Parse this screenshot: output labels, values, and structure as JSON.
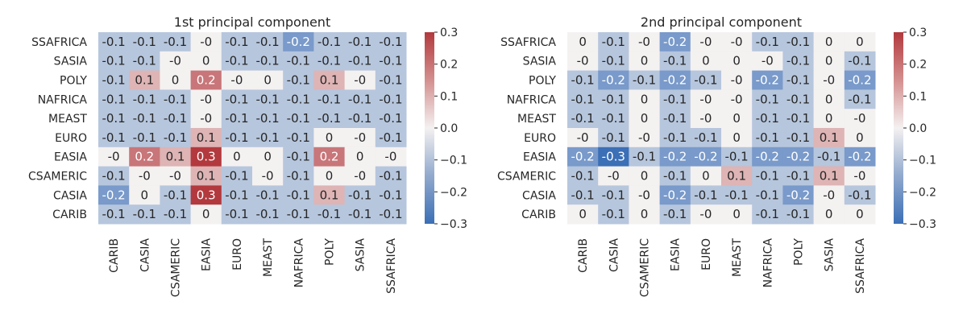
{
  "chart_data": [
    {
      "type": "heatmap",
      "title": "1st principal component",
      "x_categories": [
        "CARIB",
        "CASIA",
        "CSAMERIC",
        "EASIA",
        "EURO",
        "MEAST",
        "NAFRICA",
        "POLY",
        "SASIA",
        "SSAFRICA"
      ],
      "y_categories": [
        "SSAFRICA",
        "SASIA",
        "POLY",
        "NAFRICA",
        "MEAST",
        "EURO",
        "EASIA",
        "CSAMERIC",
        "CASIA",
        "CARIB"
      ],
      "values": [
        [
          -0.1,
          -0.1,
          -0.1,
          -0.0,
          -0.1,
          -0.1,
          -0.2,
          -0.1,
          -0.1,
          -0.1
        ],
        [
          -0.1,
          -0.1,
          -0.0,
          0.0,
          -0.1,
          -0.1,
          -0.1,
          -0.1,
          -0.1,
          -0.1
        ],
        [
          -0.1,
          0.1,
          0.0,
          0.2,
          -0.0,
          0.0,
          -0.1,
          0.1,
          -0.0,
          -0.1
        ],
        [
          -0.1,
          -0.1,
          -0.1,
          -0.0,
          -0.1,
          -0.1,
          -0.1,
          -0.1,
          -0.1,
          -0.1
        ],
        [
          -0.1,
          -0.1,
          -0.1,
          -0.0,
          -0.1,
          -0.1,
          -0.1,
          -0.1,
          -0.1,
          -0.1
        ],
        [
          -0.1,
          -0.1,
          -0.1,
          0.1,
          -0.1,
          -0.1,
          -0.1,
          0.0,
          -0.0,
          -0.1
        ],
        [
          -0.0,
          0.2,
          0.1,
          0.3,
          0.0,
          0.0,
          -0.1,
          0.2,
          0.0,
          -0.0
        ],
        [
          -0.1,
          -0.0,
          -0.0,
          0.1,
          -0.1,
          -0.0,
          -0.1,
          0.0,
          -0.0,
          -0.1
        ],
        [
          -0.2,
          0.0,
          -0.1,
          0.3,
          -0.1,
          -0.1,
          -0.1,
          0.1,
          -0.1,
          -0.1
        ],
        [
          -0.1,
          -0.1,
          -0.1,
          0.0,
          -0.1,
          -0.1,
          -0.1,
          -0.1,
          -0.1,
          -0.1
        ]
      ],
      "labels": [
        [
          "-0.1",
          "-0.1",
          "-0.1",
          "-0",
          "-0.1",
          "-0.1",
          "-0.2",
          "-0.1",
          "-0.1",
          "-0.1"
        ],
        [
          "-0.1",
          "-0.1",
          "-0",
          "0",
          "-0.1",
          "-0.1",
          "-0.1",
          "-0.1",
          "-0.1",
          "-0.1"
        ],
        [
          "-0.1",
          "0.1",
          "0",
          "0.2",
          "-0",
          "0",
          "-0.1",
          "0.1",
          "-0",
          "-0.1"
        ],
        [
          "-0.1",
          "-0.1",
          "-0.1",
          "-0",
          "-0.1",
          "-0.1",
          "-0.1",
          "-0.1",
          "-0.1",
          "-0.1"
        ],
        [
          "-0.1",
          "-0.1",
          "-0.1",
          "-0",
          "-0.1",
          "-0.1",
          "-0.1",
          "-0.1",
          "-0.1",
          "-0.1"
        ],
        [
          "-0.1",
          "-0.1",
          "-0.1",
          "0.1",
          "-0.1",
          "-0.1",
          "-0.1",
          "0",
          "-0",
          "-0.1"
        ],
        [
          "-0",
          "0.2",
          "0.1",
          "0.3",
          "0",
          "0",
          "-0.1",
          "0.2",
          "0",
          "-0"
        ],
        [
          "-0.1",
          "-0",
          "-0",
          "0.1",
          "-0.1",
          "-0",
          "-0.1",
          "0",
          "-0",
          "-0.1"
        ],
        [
          "-0.2",
          "0",
          "-0.1",
          "0.3",
          "-0.1",
          "-0.1",
          "-0.1",
          "0.1",
          "-0.1",
          "-0.1"
        ],
        [
          "-0.1",
          "-0.1",
          "-0.1",
          "0",
          "-0.1",
          "-0.1",
          "-0.1",
          "-0.1",
          "-0.1",
          "-0.1"
        ]
      ],
      "colorbar": {
        "vmin": -0.3,
        "vmax": 0.3,
        "ticks": [
          "0.3",
          "0.2",
          "0.1",
          "0.0",
          "−0.1",
          "−0.2",
          "−0.3"
        ],
        "tick_values": [
          0.3,
          0.2,
          0.1,
          0.0,
          -0.1,
          -0.2,
          -0.3
        ],
        "cmap": "vlag"
      }
    },
    {
      "type": "heatmap",
      "title": "2nd principal component",
      "x_categories": [
        "CARIB",
        "CASIA",
        "CSAMERIC",
        "EASIA",
        "EURO",
        "MEAST",
        "NAFRICA",
        "POLY",
        "SASIA",
        "SSAFRICA"
      ],
      "y_categories": [
        "SSAFRICA",
        "SASIA",
        "POLY",
        "NAFRICA",
        "MEAST",
        "EURO",
        "EASIA",
        "CSAMERIC",
        "CASIA",
        "CARIB"
      ],
      "values": [
        [
          0.0,
          -0.1,
          -0.0,
          -0.2,
          -0.0,
          -0.0,
          -0.1,
          -0.1,
          0.0,
          0.0
        ],
        [
          -0.0,
          -0.1,
          0.0,
          -0.1,
          0.0,
          0.0,
          -0.0,
          -0.1,
          0.0,
          -0.1
        ],
        [
          -0.1,
          -0.2,
          -0.1,
          -0.2,
          -0.1,
          -0.0,
          -0.2,
          -0.1,
          -0.0,
          -0.2
        ],
        [
          -0.1,
          -0.1,
          0.0,
          -0.1,
          -0.0,
          -0.0,
          -0.1,
          -0.1,
          0.0,
          -0.1
        ],
        [
          -0.1,
          -0.1,
          0.0,
          -0.1,
          -0.0,
          0.0,
          -0.1,
          -0.1,
          0.0,
          -0.0
        ],
        [
          -0.0,
          -0.1,
          -0.0,
          -0.1,
          -0.1,
          0.0,
          -0.1,
          -0.1,
          0.1,
          0.0
        ],
        [
          -0.2,
          -0.3,
          -0.1,
          -0.2,
          -0.2,
          -0.1,
          -0.2,
          -0.2,
          -0.1,
          -0.2
        ],
        [
          -0.1,
          -0.0,
          0.0,
          -0.1,
          0.0,
          0.1,
          -0.1,
          -0.1,
          0.1,
          -0.0
        ],
        [
          -0.1,
          -0.1,
          -0.0,
          -0.2,
          -0.1,
          -0.1,
          -0.1,
          -0.2,
          -0.0,
          -0.1
        ],
        [
          0.0,
          -0.1,
          0.0,
          -0.1,
          -0.0,
          0.0,
          -0.1,
          -0.1,
          0.0,
          0.0
        ]
      ],
      "labels": [
        [
          "0",
          "-0.1",
          "-0",
          "-0.2",
          "-0",
          "-0",
          "-0.1",
          "-0.1",
          "0",
          "0"
        ],
        [
          "-0",
          "-0.1",
          "0",
          "-0.1",
          "0",
          "0",
          "-0",
          "-0.1",
          "0",
          "-0.1"
        ],
        [
          "-0.1",
          "-0.2",
          "-0.1",
          "-0.2",
          "-0.1",
          "-0",
          "-0.2",
          "-0.1",
          "-0",
          "-0.2"
        ],
        [
          "-0.1",
          "-0.1",
          "0",
          "-0.1",
          "-0",
          "-0",
          "-0.1",
          "-0.1",
          "0",
          "-0.1"
        ],
        [
          "-0.1",
          "-0.1",
          "0",
          "-0.1",
          "-0",
          "0",
          "-0.1",
          "-0.1",
          "0",
          "-0"
        ],
        [
          "-0",
          "-0.1",
          "-0",
          "-0.1",
          "-0.1",
          "0",
          "-0.1",
          "-0.1",
          "0.1",
          "0"
        ],
        [
          "-0.2",
          "-0.3",
          "-0.1",
          "-0.2",
          "-0.2",
          "-0.1",
          "-0.2",
          "-0.2",
          "-0.1",
          "-0.2"
        ],
        [
          "-0.1",
          "-0",
          "0",
          "-0.1",
          "0",
          "0.1",
          "-0.1",
          "-0.1",
          "0.1",
          "-0"
        ],
        [
          "-0.1",
          "-0.1",
          "-0",
          "-0.2",
          "-0.1",
          "-0.1",
          "-0.1",
          "-0.2",
          "-0",
          "-0.1"
        ],
        [
          "0",
          "-0.1",
          "0",
          "-0.1",
          "-0",
          "0",
          "-0.1",
          "-0.1",
          "0",
          "0"
        ]
      ],
      "colorbar": {
        "vmin": -0.3,
        "vmax": 0.3,
        "ticks": [
          "0.3",
          "0.2",
          "0.1",
          "0.0",
          "−0.1",
          "−0.2",
          "−0.3"
        ],
        "tick_values": [
          0.3,
          0.2,
          0.1,
          0.0,
          -0.1,
          -0.2,
          -0.3
        ],
        "cmap": "vlag"
      }
    }
  ],
  "colors": {
    "negative": "#3b6fb6",
    "neutral": "#f4f1f1",
    "positive": "#b2393d",
    "text_dark": "#262626",
    "text_light": "#ffffff"
  }
}
